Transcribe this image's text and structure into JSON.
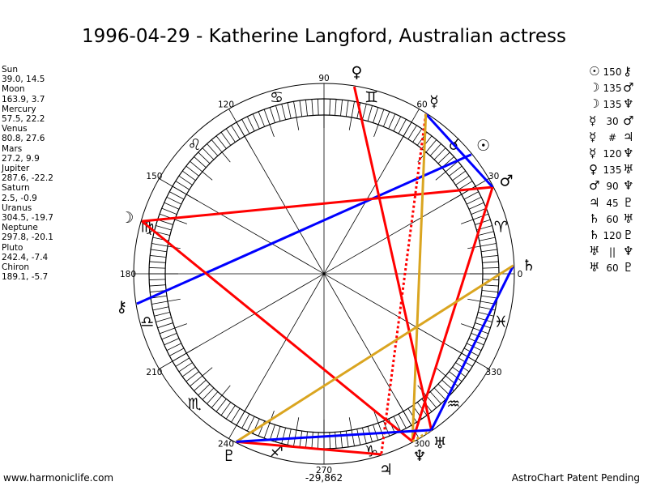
{
  "title": "1996-04-29 - Katherine Langford, Australian actress",
  "planets": [
    {
      "name": "Sun",
      "glyph": "☉",
      "values": "39.0, 14.5",
      "lon": 39.0
    },
    {
      "name": "Moon",
      "glyph": "☽",
      "values": "163.9, 3.7",
      "lon": 163.9
    },
    {
      "name": "Mercury",
      "glyph": "☿",
      "values": "57.5, 22.2",
      "lon": 57.5
    },
    {
      "name": "Venus",
      "glyph": "♀",
      "values": "80.8, 27.6",
      "lon": 80.8
    },
    {
      "name": "Mars",
      "glyph": "♂",
      "values": "27.2, 9.9",
      "lon": 27.2
    },
    {
      "name": "Jupiter",
      "glyph": "♃",
      "values": "287.6, -22.2",
      "lon": 287.6
    },
    {
      "name": "Saturn",
      "glyph": "♄",
      "values": "2.5, -0.9",
      "lon": 2.5
    },
    {
      "name": "Uranus",
      "glyph": "♅",
      "values": "304.5, -19.7",
      "lon": 304.5
    },
    {
      "name": "Neptune",
      "glyph": "♆",
      "values": "297.8, -20.1",
      "lon": 297.8
    },
    {
      "name": "Pluto",
      "glyph": "♇",
      "values": "242.4, -7.4",
      "lon": 242.4
    },
    {
      "name": "Chiron",
      "glyph": "⚷",
      "values": "189.1, -5.7",
      "lon": 189.1
    }
  ],
  "aspects": [
    {
      "p1": "Sun",
      "aspect": "150",
      "p2": "Chiron",
      "color": "#0000ff",
      "style": "solid"
    },
    {
      "p1": "Moon",
      "aspect": "135",
      "p2": "Mars",
      "color": "#ff0000",
      "style": "solid"
    },
    {
      "p1": "Moon",
      "aspect": "135",
      "p2": "Neptune",
      "color": "#ff0000",
      "style": "solid"
    },
    {
      "p1": "Mercury",
      "aspect": "30",
      "p2": "Mars",
      "color": "#0000ff",
      "style": "solid"
    },
    {
      "p1": "Mercury",
      "aspect": "#",
      "p2": "Jupiter",
      "color": "#ff0000",
      "style": "dotted"
    },
    {
      "p1": "Mercury",
      "aspect": "120",
      "p2": "Neptune",
      "color": "#daa520",
      "style": "solid"
    },
    {
      "p1": "Venus",
      "aspect": "135",
      "p2": "Uranus",
      "color": "#ff0000",
      "style": "solid"
    },
    {
      "p1": "Mars",
      "aspect": "90",
      "p2": "Neptune",
      "color": "#ff0000",
      "style": "solid"
    },
    {
      "p1": "Jupiter",
      "aspect": "45",
      "p2": "Pluto",
      "color": "#ff0000",
      "style": "solid"
    },
    {
      "p1": "Saturn",
      "aspect": "60",
      "p2": "Uranus",
      "color": "#0000ff",
      "style": "solid"
    },
    {
      "p1": "Saturn",
      "aspect": "120",
      "p2": "Pluto",
      "color": "#daa520",
      "style": "solid"
    },
    {
      "p1": "Uranus",
      "aspect": "||",
      "p2": "Neptune",
      "color": "#daa520",
      "style": "dotted"
    },
    {
      "p1": "Uranus",
      "aspect": "60",
      "p2": "Pluto",
      "color": "#0000ff",
      "style": "solid"
    }
  ],
  "zodiac": [
    "♈",
    "♉",
    "♊",
    "♋",
    "♌",
    "♍",
    "♎",
    "♏",
    "♐",
    "♑",
    "♒",
    "♓"
  ],
  "degree_labels": [
    "0",
    "30",
    "60",
    "90",
    "120",
    "150",
    "180",
    "210",
    "240",
    "270",
    "300",
    "330"
  ],
  "footer": {
    "left": "www.harmoniclife.com",
    "center": "-29,862",
    "right": "AstroChart Patent Pending"
  }
}
